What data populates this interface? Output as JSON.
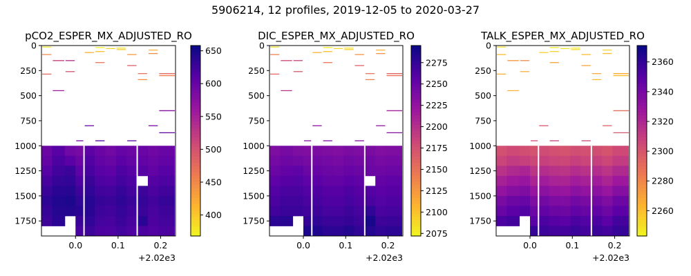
{
  "suptitle": "5906214, 12 profiles, 2019-12-05 to 2020-03-27",
  "colormap": {
    "name": "plasma-reversed",
    "stops": [
      "#f0f921",
      "#fdb42f",
      "#ed7953",
      "#cc4778",
      "#9c179e",
      "#5c01a6",
      "#0d0887"
    ]
  },
  "chart_data": [
    {
      "type": "heatmap",
      "title": "pCO2_ESPER_MX_ADJUSTED_RO",
      "xlabel": "",
      "ylabel": "",
      "x_offset_label": "+2.02e3",
      "xlim": [
        -0.08,
        0.235
      ],
      "ylim": [
        1900,
        0
      ],
      "xticks": [
        "0.0",
        "0.1",
        "0.2"
      ],
      "xtick_values": [
        0.0,
        0.1,
        0.2
      ],
      "yticks": [
        "0",
        "250",
        "500",
        "750",
        "1000",
        "1250",
        "1500",
        "1750"
      ],
      "ytick_values": [
        0,
        250,
        500,
        750,
        1000,
        1250,
        1500,
        1750
      ],
      "colorbar": {
        "range": [
          368,
          658
        ],
        "ticks": [
          "400",
          "450",
          "500",
          "550",
          "600",
          "650"
        ],
        "tick_values": [
          400,
          450,
          500,
          550,
          600,
          650
        ]
      },
      "profiles_x": [
        -0.08,
        -0.055,
        -0.025,
        0.0,
        0.02,
        0.045,
        0.07,
        0.095,
        0.12,
        0.145,
        0.17,
        0.195,
        0.235
      ],
      "gaps_after_profile": [
        3,
        8,
        11
      ],
      "shallow_samples": [
        {
          "profile": 0,
          "depth": 15,
          "value": 380
        },
        {
          "profile": 0,
          "depth": 90,
          "value": 450
        },
        {
          "profile": 0,
          "depth": 285,
          "value": 480
        },
        {
          "profile": 1,
          "depth": 150,
          "value": 520
        },
        {
          "profile": 1,
          "depth": 450,
          "value": 560
        },
        {
          "profile": 2,
          "depth": 260,
          "value": 500
        },
        {
          "profile": 2,
          "depth": 150,
          "value": 540
        },
        {
          "profile": 4,
          "depth": 70,
          "value": 420
        },
        {
          "profile": 4,
          "depth": 800,
          "value": 600
        },
        {
          "profile": 5,
          "depth": 20,
          "value": 375
        },
        {
          "profile": 5,
          "depth": 60,
          "value": 410
        },
        {
          "profile": 5,
          "depth": 170,
          "value": 470
        },
        {
          "profile": 6,
          "depth": 30,
          "value": 395
        },
        {
          "profile": 7,
          "depth": 25,
          "value": 385
        },
        {
          "profile": 7,
          "depth": 40,
          "value": 400
        },
        {
          "profile": 8,
          "depth": 90,
          "value": 440
        },
        {
          "profile": 8,
          "depth": 200,
          "value": 490
        },
        {
          "profile": 9,
          "depth": 280,
          "value": 470
        },
        {
          "profile": 9,
          "depth": 340,
          "value": 450
        },
        {
          "profile": 10,
          "depth": 45,
          "value": 420
        },
        {
          "profile": 10,
          "depth": 80,
          "value": 450
        },
        {
          "profile": 10,
          "depth": 800,
          "value": 590
        },
        {
          "profile": 11,
          "depth": 280,
          "value": 480
        },
        {
          "profile": 11,
          "depth": 300,
          "value": 460
        },
        {
          "profile": 11,
          "depth": 650,
          "value": 580
        },
        {
          "profile": 11,
          "depth": 870,
          "value": 610
        },
        {
          "profile": 3,
          "depth": 950,
          "value": 600
        },
        {
          "profile": 5,
          "depth": 950,
          "value": 620
        },
        {
          "profile": 8,
          "depth": 950,
          "value": 610
        }
      ],
      "grid_depths": [
        1000,
        1100,
        1200,
        1300,
        1400,
        1500,
        1600,
        1700,
        1800,
        1900
      ],
      "grid_values": [
        [
          598,
          612,
          595,
          590,
          608,
          600,
          594,
          602,
          598,
          600,
          596,
          600
        ],
        [
          604,
          620,
          610,
          598,
          616,
          606,
          600,
          610,
          604,
          606,
          600,
          606
        ],
        [
          612,
          626,
          630,
          608,
          622,
          612,
          608,
          618,
          612,
          612,
          606,
          612
        ],
        [
          622,
          632,
          636,
          618,
          630,
          618,
          616,
          624,
          618,
          null,
          614,
          618
        ],
        [
          630,
          640,
          642,
          628,
          636,
          626,
          624,
          632,
          624,
          628,
          620,
          626
        ],
        [
          638,
          646,
          648,
          636,
          642,
          632,
          630,
          638,
          630,
          634,
          626,
          632
        ],
        [
          632,
          644,
          644,
          640,
          640,
          628,
          626,
          634,
          626,
          630,
          622,
          628
        ],
        [
          628,
          640,
          null,
          630,
          636,
          624,
          622,
          630,
          622,
          640,
          620,
          624
        ],
        [
          null,
          null,
          null,
          622,
          628,
          620,
          618,
          624,
          618,
          620,
          616,
          620
        ]
      ]
    },
    {
      "type": "heatmap",
      "title": "DIC_ESPER_MX_ADJUSTED_RO",
      "xlabel": "",
      "ylabel": "",
      "x_offset_label": "+2.02e3",
      "xlim": [
        -0.08,
        0.235
      ],
      "ylim": [
        1900,
        0
      ],
      "xticks": [
        "0.0",
        "0.1",
        "0.2"
      ],
      "xtick_values": [
        0.0,
        0.1,
        0.2
      ],
      "yticks": [
        "0",
        "250",
        "500",
        "750",
        "1000",
        "1250",
        "1500",
        "1750"
      ],
      "ytick_values": [
        0,
        250,
        500,
        750,
        1000,
        1250,
        1500,
        1750
      ],
      "colorbar": {
        "range": [
          2072,
          2295
        ],
        "ticks": [
          "2075",
          "2100",
          "2125",
          "2150",
          "2175",
          "2200",
          "2225",
          "2250",
          "2275"
        ],
        "tick_values": [
          2075,
          2100,
          2125,
          2150,
          2175,
          2200,
          2225,
          2250,
          2275
        ]
      },
      "profiles_x": [
        -0.08,
        -0.055,
        -0.025,
        0.0,
        0.02,
        0.045,
        0.07,
        0.095,
        0.12,
        0.145,
        0.17,
        0.195,
        0.235
      ],
      "gaps_after_profile": [
        3,
        8,
        11
      ],
      "shallow_samples": [
        {
          "profile": 0,
          "depth": 15,
          "value": 2085
        },
        {
          "profile": 0,
          "depth": 90,
          "value": 2140
        },
        {
          "profile": 0,
          "depth": 285,
          "value": 2160
        },
        {
          "profile": 1,
          "depth": 150,
          "value": 2180
        },
        {
          "profile": 1,
          "depth": 450,
          "value": 2200
        },
        {
          "profile": 2,
          "depth": 260,
          "value": 2170
        },
        {
          "profile": 2,
          "depth": 150,
          "value": 2190
        },
        {
          "profile": 4,
          "depth": 70,
          "value": 2110
        },
        {
          "profile": 4,
          "depth": 800,
          "value": 2230
        },
        {
          "profile": 5,
          "depth": 20,
          "value": 2080
        },
        {
          "profile": 5,
          "depth": 60,
          "value": 2105
        },
        {
          "profile": 5,
          "depth": 170,
          "value": 2150
        },
        {
          "profile": 6,
          "depth": 30,
          "value": 2090
        },
        {
          "profile": 7,
          "depth": 25,
          "value": 2085
        },
        {
          "profile": 7,
          "depth": 40,
          "value": 2095
        },
        {
          "profile": 8,
          "depth": 90,
          "value": 2130
        },
        {
          "profile": 8,
          "depth": 200,
          "value": 2165
        },
        {
          "profile": 9,
          "depth": 280,
          "value": 2150
        },
        {
          "profile": 9,
          "depth": 340,
          "value": 2140
        },
        {
          "profile": 10,
          "depth": 45,
          "value": 2110
        },
        {
          "profile": 10,
          "depth": 80,
          "value": 2130
        },
        {
          "profile": 10,
          "depth": 800,
          "value": 2225
        },
        {
          "profile": 11,
          "depth": 280,
          "value": 2160
        },
        {
          "profile": 11,
          "depth": 300,
          "value": 2150
        },
        {
          "profile": 11,
          "depth": 650,
          "value": 2215
        },
        {
          "profile": 11,
          "depth": 870,
          "value": 2235
        },
        {
          "profile": 3,
          "depth": 950,
          "value": 2235
        },
        {
          "profile": 5,
          "depth": 950,
          "value": 2240
        },
        {
          "profile": 8,
          "depth": 950,
          "value": 2238
        }
      ],
      "grid_depths": [
        1000,
        1100,
        1200,
        1300,
        1400,
        1500,
        1600,
        1700,
        1800,
        1900
      ],
      "grid_values": [
        [
          2238,
          2242,
          2238,
          2236,
          2240,
          2238,
          2236,
          2240,
          2238,
          2240,
          2236,
          2238
        ],
        [
          2244,
          2248,
          2246,
          2242,
          2246,
          2244,
          2242,
          2246,
          2244,
          2246,
          2242,
          2244
        ],
        [
          2250,
          2254,
          2256,
          2250,
          2252,
          2250,
          2248,
          2252,
          2250,
          2250,
          2248,
          2250
        ],
        [
          2256,
          2260,
          2262,
          2256,
          2258,
          2255,
          2254,
          2258,
          2256,
          null,
          2254,
          2256
        ],
        [
          2262,
          2266,
          2266,
          2262,
          2264,
          2260,
          2260,
          2264,
          2260,
          2262,
          2258,
          2260
        ],
        [
          2266,
          2270,
          2270,
          2266,
          2268,
          2264,
          2264,
          2268,
          2264,
          2266,
          2262,
          2264
        ],
        [
          2270,
          2274,
          2274,
          2270,
          2272,
          2268,
          2268,
          2272,
          2268,
          2278,
          2266,
          2268
        ],
        [
          2280,
          2282,
          null,
          2276,
          2278,
          2274,
          2274,
          2276,
          2272,
          2290,
          2272,
          2274
        ],
        [
          null,
          null,
          null,
          2288,
          2286,
          2280,
          2280,
          2284,
          2278,
          2284,
          2278,
          2280
        ]
      ]
    },
    {
      "type": "heatmap",
      "title": "TALK_ESPER_MX_ADJUSTED_RO",
      "xlabel": "",
      "ylabel": "",
      "x_offset_label": "+2.02e3",
      "xlim": [
        -0.08,
        0.235
      ],
      "ylim": [
        1900,
        0
      ],
      "xticks": [
        "0.0",
        "0.1",
        "0.2"
      ],
      "xtick_values": [
        0.0,
        0.1,
        0.2
      ],
      "yticks": [
        "0",
        "250",
        "500",
        "750",
        "1000",
        "1250",
        "1500",
        "1750"
      ],
      "ytick_values": [
        0,
        250,
        500,
        750,
        1000,
        1250,
        1500,
        1750
      ],
      "colorbar": {
        "range": [
          2243,
          2371
        ],
        "ticks": [
          "2260",
          "2280",
          "2300",
          "2320",
          "2340",
          "2360"
        ],
        "tick_values": [
          2260,
          2280,
          2300,
          2320,
          2340,
          2360
        ]
      },
      "profiles_x": [
        -0.08,
        -0.055,
        -0.025,
        0.0,
        0.02,
        0.045,
        0.07,
        0.095,
        0.12,
        0.145,
        0.17,
        0.195,
        0.235
      ],
      "gaps_after_profile": [
        3,
        8,
        11
      ],
      "shallow_samples": [
        {
          "profile": 0,
          "depth": 15,
          "value": 2250
        },
        {
          "profile": 0,
          "depth": 90,
          "value": 2262
        },
        {
          "profile": 0,
          "depth": 285,
          "value": 2268
        },
        {
          "profile": 1,
          "depth": 150,
          "value": 2274
        },
        {
          "profile": 1,
          "depth": 450,
          "value": 2265
        },
        {
          "profile": 2,
          "depth": 260,
          "value": 2266
        },
        {
          "profile": 2,
          "depth": 150,
          "value": 2280
        },
        {
          "profile": 4,
          "depth": 70,
          "value": 2256
        },
        {
          "profile": 4,
          "depth": 800,
          "value": 2300
        },
        {
          "profile": 5,
          "depth": 20,
          "value": 2248
        },
        {
          "profile": 5,
          "depth": 60,
          "value": 2255
        },
        {
          "profile": 5,
          "depth": 170,
          "value": 2270
        },
        {
          "profile": 6,
          "depth": 30,
          "value": 2250
        },
        {
          "profile": 7,
          "depth": 25,
          "value": 2248
        },
        {
          "profile": 7,
          "depth": 40,
          "value": 2252
        },
        {
          "profile": 8,
          "depth": 90,
          "value": 2262
        },
        {
          "profile": 8,
          "depth": 200,
          "value": 2270
        },
        {
          "profile": 9,
          "depth": 280,
          "value": 2268
        },
        {
          "profile": 9,
          "depth": 340,
          "value": 2262
        },
        {
          "profile": 10,
          "depth": 45,
          "value": 2256
        },
        {
          "profile": 10,
          "depth": 80,
          "value": 2262
        },
        {
          "profile": 10,
          "depth": 800,
          "value": 2295
        },
        {
          "profile": 11,
          "depth": 280,
          "value": 2268
        },
        {
          "profile": 11,
          "depth": 300,
          "value": 2262
        },
        {
          "profile": 11,
          "depth": 650,
          "value": 2290
        },
        {
          "profile": 11,
          "depth": 870,
          "value": 2300
        },
        {
          "profile": 3,
          "depth": 950,
          "value": 2305
        },
        {
          "profile": 5,
          "depth": 950,
          "value": 2310
        },
        {
          "profile": 8,
          "depth": 950,
          "value": 2308
        }
      ],
      "grid_depths": [
        1000,
        1100,
        1200,
        1300,
        1400,
        1500,
        1600,
        1700,
        1800,
        1900
      ],
      "grid_values": [
        [
          2303,
          2306,
          2304,
          2302,
          2305,
          2303,
          2302,
          2304,
          2303,
          2304,
          2302,
          2306
        ],
        [
          2308,
          2312,
          2310,
          2307,
          2310,
          2308,
          2307,
          2310,
          2308,
          2310,
          2307,
          2312
        ],
        [
          2316,
          2320,
          2322,
          2315,
          2318,
          2316,
          2315,
          2318,
          2316,
          2318,
          2315,
          2320
        ],
        [
          2324,
          2328,
          2330,
          2322,
          2326,
          2323,
          2322,
          2326,
          2324,
          2326,
          2322,
          2328
        ],
        [
          2332,
          2336,
          2338,
          2330,
          2334,
          2331,
          2330,
          2334,
          2332,
          2334,
          2330,
          2336
        ],
        [
          2340,
          2344,
          2346,
          2338,
          2342,
          2339,
          2338,
          2342,
          2340,
          2342,
          2338,
          2344
        ],
        [
          2346,
          2350,
          2352,
          2344,
          2348,
          2345,
          2344,
          2348,
          2346,
          2348,
          2344,
          2350
        ],
        [
          2354,
          2356,
          null,
          2350,
          2354,
          2351,
          2350,
          2354,
          2352,
          2354,
          2350,
          2356
        ],
        [
          null,
          null,
          null,
          2360,
          2358,
          2356,
          2356,
          2358,
          2356,
          2358,
          2356,
          2360
        ]
      ]
    }
  ]
}
